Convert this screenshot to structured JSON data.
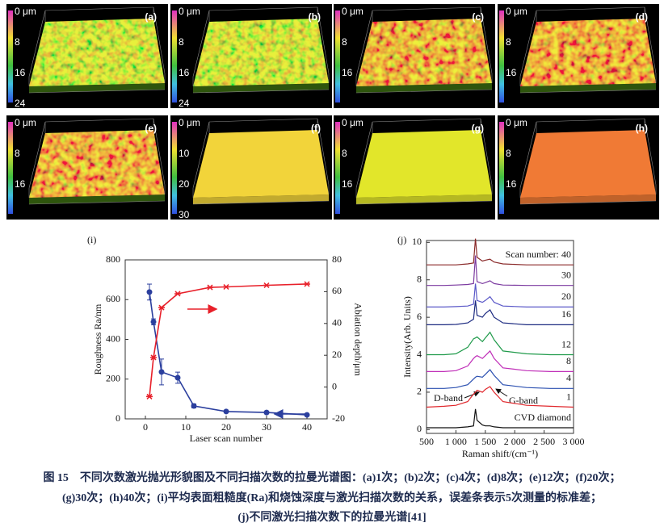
{
  "panels": [
    {
      "label": "(a)",
      "scale": [
        "0 μm",
        "8",
        "16",
        "24"
      ]
    },
    {
      "label": "(b)",
      "scale": [
        "0 μm",
        "8",
        "16",
        "24"
      ]
    },
    {
      "label": "(c)",
      "scale": [
        "0 μm",
        "8",
        "16"
      ]
    },
    {
      "label": "(d)",
      "scale": [
        "0 μm",
        "8",
        "16"
      ]
    },
    {
      "label": "(e)",
      "scale": [
        "0 μm",
        "8",
        "16"
      ]
    },
    {
      "label": "(f)",
      "scale": [
        "0 μm",
        "10",
        "20",
        "30"
      ]
    },
    {
      "label": "(g)",
      "scale": [
        "0 μm",
        "8",
        "16"
      ]
    },
    {
      "label": "(h)",
      "scale": [
        "0 μm",
        "8",
        "16"
      ]
    }
  ],
  "chart_data": [
    {
      "type": "line",
      "label": "(i)",
      "xlabel": "Laser scan number",
      "ylabel": "Roughness Ra/nm",
      "y2label": "Ablation depth/μm",
      "xlim": [
        -5,
        45
      ],
      "xticks": [
        0,
        10,
        20,
        30,
        40
      ],
      "ylim": [
        0,
        800
      ],
      "yticks": [
        0,
        200,
        400,
        600,
        800
      ],
      "y2lim": [
        -20,
        80
      ],
      "y2ticks": [
        -20,
        0,
        20,
        40,
        60,
        80
      ],
      "series": [
        {
          "color": "#2b3f9e",
          "marker": "circle",
          "x": [
            1,
            2,
            4,
            8,
            12,
            20,
            30,
            40
          ],
          "values": [
            638,
            488,
            236,
            207,
            65,
            37,
            32,
            20
          ],
          "errors": [
            40,
            15,
            65,
            28,
            10,
            5,
            5,
            5
          ]
        },
        {
          "color": "#e8202a",
          "marker": "x",
          "axis": "y2",
          "x": [
            1,
            2,
            4,
            8,
            16,
            20,
            30,
            40
          ],
          "values": [
            -6,
            18.6,
            50,
            58.7,
            62.7,
            63,
            64,
            64.8
          ]
        }
      ]
    },
    {
      "type": "line",
      "label": "(j)",
      "xlabel": "Raman shift/(cm⁻¹)",
      "ylabel": "Intensity(Arb. Units)",
      "xlim": [
        500,
        3000
      ],
      "xticks": [
        500,
        {
          "value": 1000,
          "label": "1 000"
        },
        {
          "value": 1500,
          "label": "1 500"
        },
        {
          "value": 2000,
          "label": "2 000"
        },
        {
          "value": 2500,
          "label": "2 500"
        },
        {
          "value": 3000,
          "label": "3 000"
        }
      ],
      "ylim": [
        -0.2,
        10.1
      ],
      "yticks": [
        0,
        2,
        4,
        6,
        8,
        10
      ],
      "annotations": [
        "D-band",
        "G-band"
      ],
      "x": [
        500,
        800,
        1000,
        1200,
        1300,
        1332,
        1360,
        1450,
        1500,
        1580,
        1650,
        1800,
        2200,
        2600,
        3000
      ],
      "series": [
        {
          "name": "CVD diamond",
          "color": "#111111",
          "values": [
            0.1,
            0.1,
            0.1,
            0.15,
            0.2,
            1.1,
            0.5,
            0.25,
            0.2,
            0.2,
            0.15,
            0.1,
            0.1,
            0.1,
            0.1
          ]
        },
        {
          "name": "1",
          "color": "#e0262b",
          "values": [
            1.2,
            1.25,
            1.3,
            1.5,
            1.9,
            2.0,
            2.1,
            2.0,
            2.15,
            2.3,
            2.0,
            1.5,
            1.3,
            1.25,
            1.2
          ]
        },
        {
          "name": "4",
          "color": "#2a4fb0",
          "values": [
            2.2,
            2.2,
            2.25,
            2.4,
            2.7,
            2.8,
            2.85,
            2.8,
            2.95,
            3.2,
            2.9,
            2.4,
            2.25,
            2.2,
            2.2
          ]
        },
        {
          "name": "8",
          "color": "#c02fb8",
          "values": [
            3.1,
            3.1,
            3.15,
            3.4,
            3.8,
            3.9,
            3.95,
            3.8,
            3.95,
            4.2,
            3.8,
            3.3,
            3.15,
            3.1,
            3.1
          ]
        },
        {
          "name": "12",
          "color": "#1f9a4a",
          "values": [
            4.0,
            4.0,
            4.05,
            4.4,
            4.85,
            4.9,
            4.95,
            4.7,
            4.9,
            5.2,
            4.8,
            4.2,
            4.05,
            4.0,
            4.0
          ]
        },
        {
          "name": "16",
          "color": "#1c2a80",
          "values": [
            5.6,
            5.6,
            5.62,
            5.7,
            5.9,
            6.9,
            6.1,
            6.0,
            6.2,
            6.4,
            6.0,
            5.7,
            5.6,
            5.6,
            5.6
          ]
        },
        {
          "name": "20",
          "color": "#5a58c8",
          "values": [
            6.55,
            6.55,
            6.57,
            6.6,
            6.7,
            7.8,
            6.9,
            6.8,
            6.9,
            7.1,
            6.8,
            6.6,
            6.55,
            6.55,
            6.55
          ]
        },
        {
          "name": "30",
          "color": "#7b3aa0",
          "values": [
            7.7,
            7.7,
            7.72,
            7.75,
            7.8,
            9.3,
            7.9,
            7.8,
            7.85,
            7.95,
            7.8,
            7.72,
            7.7,
            7.7,
            7.7
          ]
        },
        {
          "name": "Scan number: 40",
          "color": "#8a2a2a",
          "values": [
            8.8,
            8.8,
            8.8,
            8.85,
            8.9,
            10.2,
            9.2,
            9.0,
            9.05,
            9.1,
            8.95,
            8.85,
            8.8,
            8.8,
            8.8
          ]
        }
      ]
    }
  ],
  "caption": [
    "图 15　不同次数激光抛光形貌图及不同扫描次数的拉曼光谱图：(a)1次；(b)2次；(c)4次；(d)8次；(e)12次；(f)20次；",
    "(g)30次；(h)40次；(i)平均表面粗糙度(Ra)和烧蚀深度与激光扫描次数的关系，误差条表示5次测量的标准差；",
    "(j)不同激光扫描次数下的拉曼光谱[41]"
  ]
}
